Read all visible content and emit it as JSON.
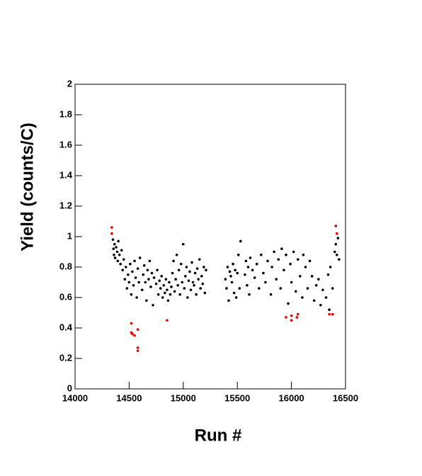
{
  "chart_data": {
    "type": "scatter",
    "x_label": "Run #",
    "y_label": "Yield (counts/C)",
    "xlim": [
      14000,
      16500
    ],
    "xticks": [
      14000,
      14500,
      15000,
      15500,
      16000,
      16500
    ],
    "ylim": [
      0,
      2
    ],
    "yticks": [
      0,
      0.2,
      0.4,
      0.6,
      0.8,
      1,
      1.2,
      1.4,
      1.6,
      1.8,
      2
    ],
    "grid": false,
    "series": [
      {
        "color": "#000000",
        "x": [
          14350,
          14355,
          14360,
          14365,
          14370,
          14380,
          14390,
          14395,
          14400,
          14410,
          14420,
          14430,
          14440,
          14450,
          14460,
          14470,
          14480,
          14490,
          14500,
          14510,
          14520,
          14530,
          14540,
          14550,
          14560,
          14570,
          14580,
          14590,
          14600,
          14620,
          14630,
          14640,
          14650,
          14660,
          14670,
          14680,
          14690,
          14700,
          14710,
          14720,
          14730,
          14750,
          14760,
          14770,
          14780,
          14790,
          14800,
          14810,
          14820,
          14830,
          14840,
          14850,
          14860,
          14870,
          14880,
          14890,
          14900,
          14910,
          14920,
          14930,
          14940,
          14950,
          14960,
          14970,
          14980,
          14990,
          15000,
          15010,
          15020,
          15030,
          15040,
          15050,
          15060,
          15070,
          15080,
          15090,
          15100,
          15110,
          15120,
          15130,
          15140,
          15150,
          15160,
          15170,
          15180,
          15190,
          15200,
          15210,
          15390,
          15400,
          15410,
          15420,
          15430,
          15440,
          15450,
          15460,
          15470,
          15480,
          15490,
          15500,
          15510,
          15520,
          15530,
          15570,
          15580,
          15590,
          15600,
          15610,
          15620,
          15640,
          15660,
          15680,
          15700,
          15720,
          15740,
          15760,
          15780,
          15810,
          15820,
          15840,
          15860,
          15880,
          15900,
          15910,
          15930,
          15950,
          15970,
          15990,
          16000,
          16020,
          16040,
          16060,
          16080,
          16100,
          16110,
          16130,
          16150,
          16170,
          16190,
          16210,
          16230,
          16250,
          16270,
          16290,
          16320,
          16340,
          16350,
          16360,
          16380,
          16400,
          16410,
          16420,
          16430,
          16440
        ],
        "values": [
          0.98,
          0.92,
          0.88,
          0.95,
          0.86,
          0.93,
          0.9,
          0.84,
          0.97,
          0.88,
          0.82,
          0.91,
          0.78,
          0.85,
          0.72,
          0.8,
          0.66,
          0.75,
          0.7,
          0.82,
          0.62,
          0.77,
          0.68,
          0.84,
          0.73,
          0.6,
          0.79,
          0.7,
          0.86,
          0.65,
          0.75,
          0.81,
          0.7,
          0.58,
          0.78,
          0.72,
          0.84,
          0.67,
          0.76,
          0.55,
          0.73,
          0.69,
          0.78,
          0.62,
          0.71,
          0.66,
          0.74,
          0.6,
          0.68,
          0.63,
          0.72,
          0.65,
          0.58,
          0.7,
          0.62,
          0.67,
          0.76,
          0.84,
          0.64,
          0.72,
          0.88,
          0.68,
          0.78,
          0.62,
          0.82,
          0.7,
          0.95,
          0.66,
          0.74,
          0.8,
          0.6,
          0.71,
          0.77,
          0.65,
          0.83,
          0.7,
          0.68,
          0.76,
          0.62,
          0.79,
          0.72,
          0.85,
          0.66,
          0.74,
          0.69,
          0.8,
          0.63,
          0.78,
          0.72,
          0.66,
          0.8,
          0.58,
          0.77,
          0.74,
          0.7,
          0.82,
          0.63,
          0.78,
          0.6,
          0.76,
          0.88,
          0.66,
          0.97,
          0.75,
          0.84,
          0.68,
          0.8,
          0.62,
          0.86,
          0.78,
          0.73,
          0.82,
          0.66,
          0.88,
          0.76,
          0.7,
          0.84,
          0.62,
          0.8,
          0.9,
          0.72,
          0.85,
          0.66,
          0.92,
          0.78,
          0.88,
          0.56,
          0.82,
          0.7,
          0.9,
          0.64,
          0.85,
          0.74,
          0.6,
          0.88,
          0.8,
          0.66,
          0.84,
          0.74,
          0.58,
          0.68,
          0.72,
          0.55,
          0.65,
          0.6,
          0.75,
          0.52,
          0.8,
          0.66,
          0.9,
          0.95,
          0.88,
          0.99,
          0.85
        ]
      },
      {
        "color": "#e00000",
        "x": [
          14340,
          14340,
          14520,
          14520,
          14530,
          14550,
          14580,
          14580,
          14580,
          14850,
          15950,
          16000,
          16000,
          16050,
          16060,
          16350,
          16380,
          16410,
          16420
        ],
        "values": [
          1.06,
          1.02,
          0.43,
          0.37,
          0.36,
          0.35,
          0.39,
          0.27,
          0.25,
          0.45,
          0.47,
          0.45,
          0.48,
          0.47,
          0.49,
          0.49,
          0.49,
          1.07,
          1.02
        ]
      }
    ]
  }
}
